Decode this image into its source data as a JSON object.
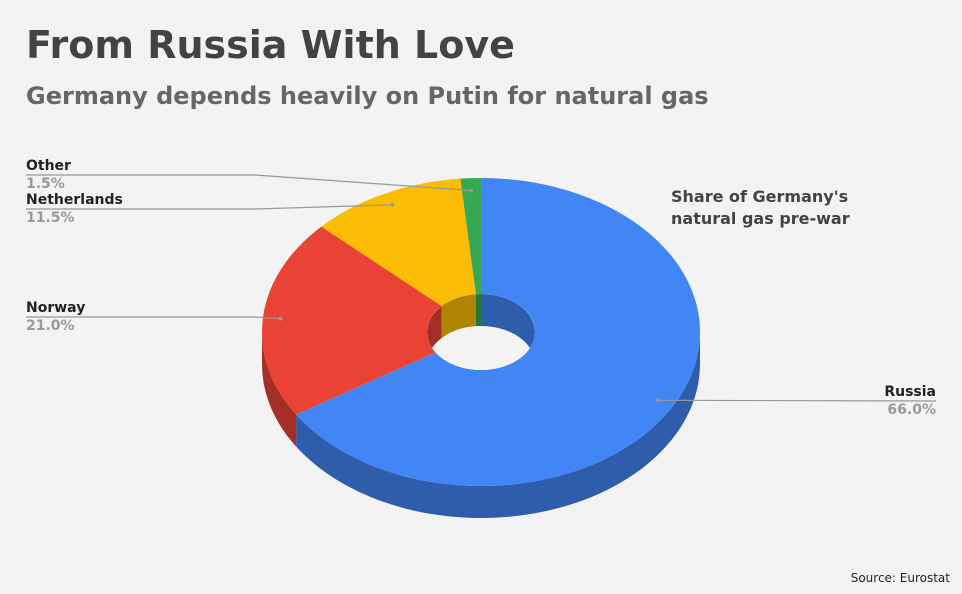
{
  "chart_data": {
    "type": "donut3d",
    "title": "From Russia With Love",
    "subtitle": "Germany depends heavily on Putin for natural gas",
    "annotation": "Share of Germany's natural gas pre-war",
    "source": "Source: Eurostat",
    "categories": [
      "Russia",
      "Norway",
      "Netherlands",
      "Other"
    ],
    "values": [
      66.0,
      21.0,
      11.5,
      1.5
    ],
    "value_labels": [
      "66.0%",
      "21.0%",
      "11.5%",
      "1.5%"
    ],
    "colors": [
      "#4285f4",
      "#ea4335",
      "#fbbc04",
      "#34a853"
    ]
  }
}
